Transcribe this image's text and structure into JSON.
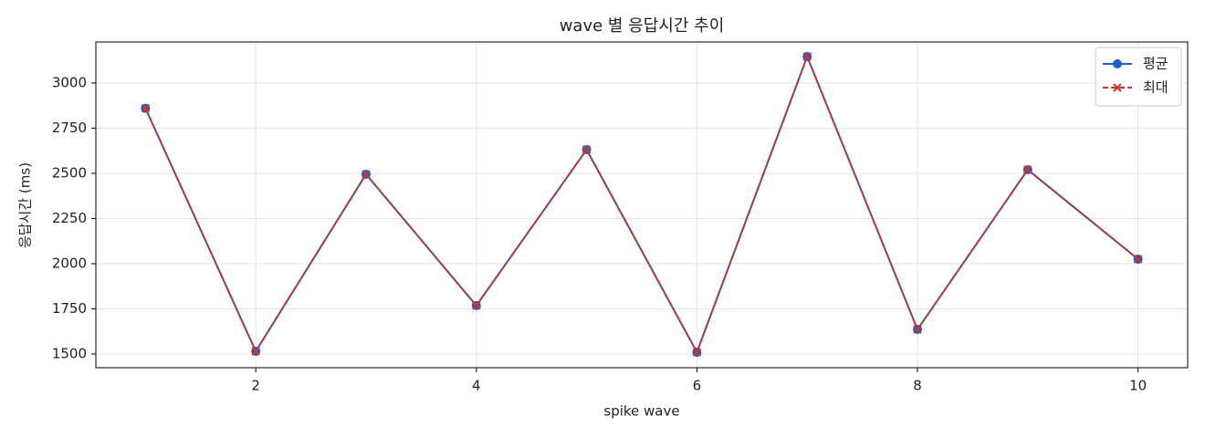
{
  "chart_data": {
    "type": "line",
    "title": "wave 별 응답시간 추이",
    "x_label": "spike wave",
    "y_label": "응답시간 (ms)",
    "x": [
      1,
      2,
      3,
      4,
      5,
      6,
      7,
      8,
      9,
      10
    ],
    "series": [
      {
        "name": "평균",
        "color": "#1f5fbf",
        "marker": "circle",
        "dashed": false,
        "values": [
          2860,
          1515,
          2495,
          1768,
          2631,
          1510,
          3146,
          1636,
          2520,
          2025
        ]
      },
      {
        "name": "최대",
        "color": "#cc3333",
        "marker": "x",
        "dashed": true,
        "values": [
          2860,
          1515,
          2495,
          1768,
          2631,
          1510,
          3146,
          1636,
          2520,
          2025
        ]
      }
    ],
    "xlim": [
      0.55,
      10.45
    ],
    "xticks": [
      2,
      4,
      6,
      8,
      10
    ],
    "ylim": [
      1424,
      3227
    ],
    "yticks": [
      1500,
      1750,
      2000,
      2250,
      2500,
      2750,
      3000
    ],
    "grid": true,
    "legend": "upper right"
  }
}
